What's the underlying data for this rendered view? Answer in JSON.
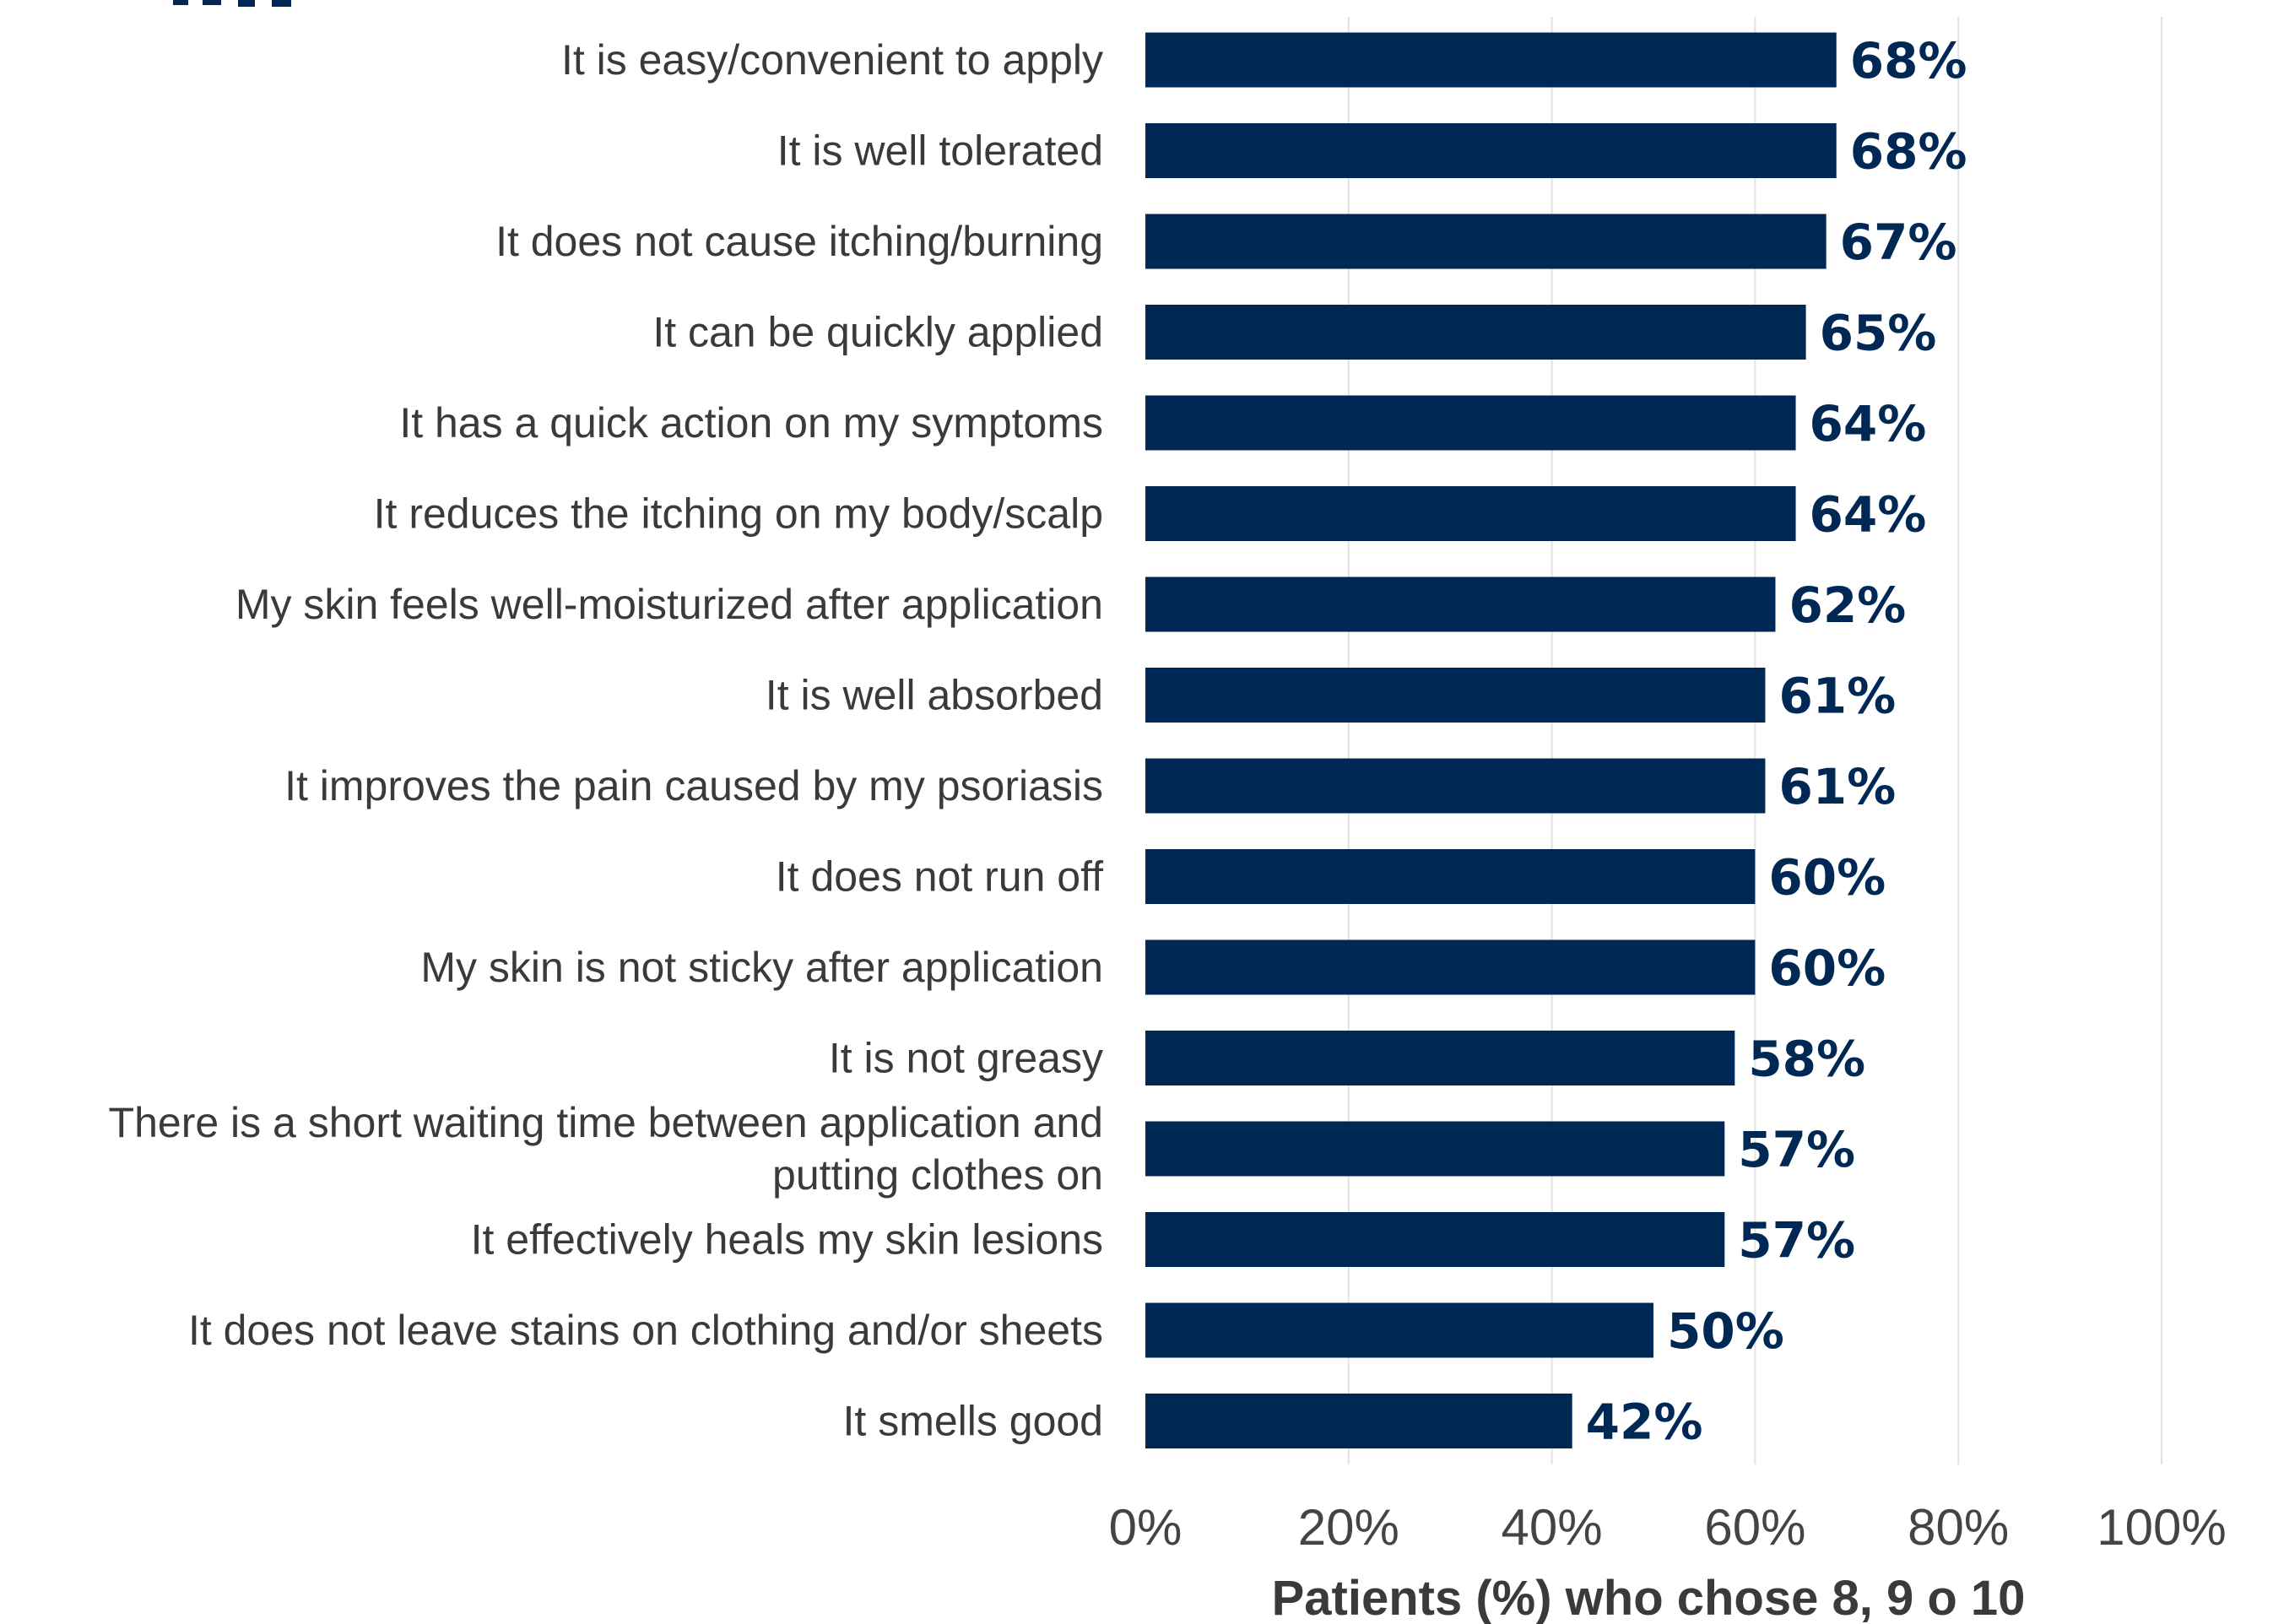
{
  "chart_data": {
    "type": "bar",
    "orientation": "horizontal",
    "categories": [
      [
        "It is easy/convenient to apply"
      ],
      [
        "It is well tolerated"
      ],
      [
        "It does not cause itching/burning"
      ],
      [
        "It can be quickly applied"
      ],
      [
        "It has a quick action on my symptoms"
      ],
      [
        "It reduces the itching on my body/scalp"
      ],
      [
        "My skin feels well-moisturized after application"
      ],
      [
        "It is well absorbed"
      ],
      [
        "It improves the pain caused by my psoriasis"
      ],
      [
        "It does not run off"
      ],
      [
        "My skin is not sticky after application"
      ],
      [
        "It is not greasy"
      ],
      [
        "There is a short waiting time between application and",
        "putting clothes on"
      ],
      [
        "It effectively heals my skin lesions"
      ],
      [
        "It does not leave stains on clothing and/or sheets"
      ],
      [
        "It smells good"
      ]
    ],
    "values": [
      68,
      68,
      67,
      65,
      64,
      64,
      62,
      61,
      61,
      60,
      60,
      58,
      57,
      57,
      50,
      42
    ],
    "value_labels": [
      "68%",
      "68%",
      "67%",
      "65%",
      "64%",
      "64%",
      "62%",
      "61%",
      "61%",
      "60%",
      "60%",
      "58%",
      "57%",
      "57%",
      "50%",
      "42%"
    ],
    "xlim": [
      0,
      100
    ],
    "xticks": [
      0,
      20,
      40,
      60,
      80,
      100
    ],
    "xtick_labels": [
      "0%",
      "20%",
      "40%",
      "60%",
      "80%",
      "100%"
    ],
    "xlabel": "Patients (%) who chose 8, 9 o 10",
    "grid": "vertical",
    "bar_color": "#002855",
    "label_color": "#002855"
  }
}
